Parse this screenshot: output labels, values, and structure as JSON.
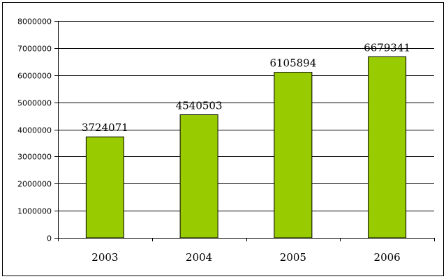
{
  "chart_data": {
    "type": "bar",
    "title": "",
    "xlabel": "",
    "ylabel": "",
    "categories": [
      "2003",
      "2004",
      "2005",
      "2006"
    ],
    "values": [
      3724071,
      4540503,
      6105894,
      6679341
    ],
    "data_labels": [
      "3724071",
      "4540503",
      "6105894",
      "6679341"
    ],
    "ylim": [
      0,
      8000000
    ],
    "yticks": [
      0,
      1000000,
      2000000,
      3000000,
      4000000,
      5000000,
      6000000,
      7000000,
      8000000
    ],
    "ytick_labels": [
      "0",
      "1000000",
      "2000000",
      "3000000",
      "4000000",
      "5000000",
      "6000000",
      "7000000",
      "8000000"
    ],
    "grid": "horizontal",
    "legend": "none",
    "bar_color": "#99CC00",
    "bar_edge_color": "#000000"
  }
}
